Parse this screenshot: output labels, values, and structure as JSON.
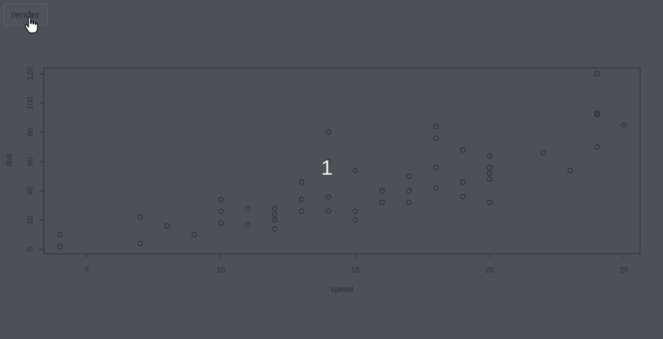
{
  "toolbar": {
    "render_label": "render"
  },
  "overlay": {
    "text": "1"
  },
  "colors": {
    "background": "#4e5058",
    "ink": "#2c2d33",
    "overlay_text": "#f2f2f2"
  },
  "icons": {
    "cursor": "hand-pointer-icon"
  },
  "chart_data": {
    "type": "scatter",
    "xlabel": "speed",
    "ylabel": "dist",
    "xlim": [
      3.4,
      25.6
    ],
    "ylim": [
      -3,
      124
    ],
    "x_ticks": [
      5,
      10,
      15,
      20,
      25
    ],
    "y_ticks": [
      0,
      20,
      40,
      60,
      80,
      100,
      120
    ],
    "grid": false,
    "marker": "open-circle",
    "points": [
      [
        4,
        2
      ],
      [
        4,
        10
      ],
      [
        7,
        4
      ],
      [
        7,
        22
      ],
      [
        8,
        16
      ],
      [
        9,
        10
      ],
      [
        10,
        18
      ],
      [
        10,
        26
      ],
      [
        10,
        34
      ],
      [
        11,
        17
      ],
      [
        11,
        28
      ],
      [
        12,
        14
      ],
      [
        12,
        20
      ],
      [
        12,
        24
      ],
      [
        12,
        28
      ],
      [
        13,
        26
      ],
      [
        13,
        34
      ],
      [
        13,
        34
      ],
      [
        13,
        46
      ],
      [
        14,
        26
      ],
      [
        14,
        36
      ],
      [
        14,
        60
      ],
      [
        14,
        80
      ],
      [
        15,
        20
      ],
      [
        15,
        26
      ],
      [
        15,
        54
      ],
      [
        16,
        32
      ],
      [
        16,
        40
      ],
      [
        17,
        32
      ],
      [
        17,
        40
      ],
      [
        17,
        50
      ],
      [
        18,
        42
      ],
      [
        18,
        56
      ],
      [
        18,
        76
      ],
      [
        18,
        84
      ],
      [
        19,
        36
      ],
      [
        19,
        46
      ],
      [
        19,
        68
      ],
      [
        20,
        32
      ],
      [
        20,
        48
      ],
      [
        20,
        52
      ],
      [
        20,
        56
      ],
      [
        20,
        64
      ],
      [
        22,
        66
      ],
      [
        23,
        54
      ],
      [
        24,
        70
      ],
      [
        24,
        92
      ],
      [
        24,
        93
      ],
      [
        24,
        120
      ],
      [
        25,
        85
      ]
    ]
  }
}
